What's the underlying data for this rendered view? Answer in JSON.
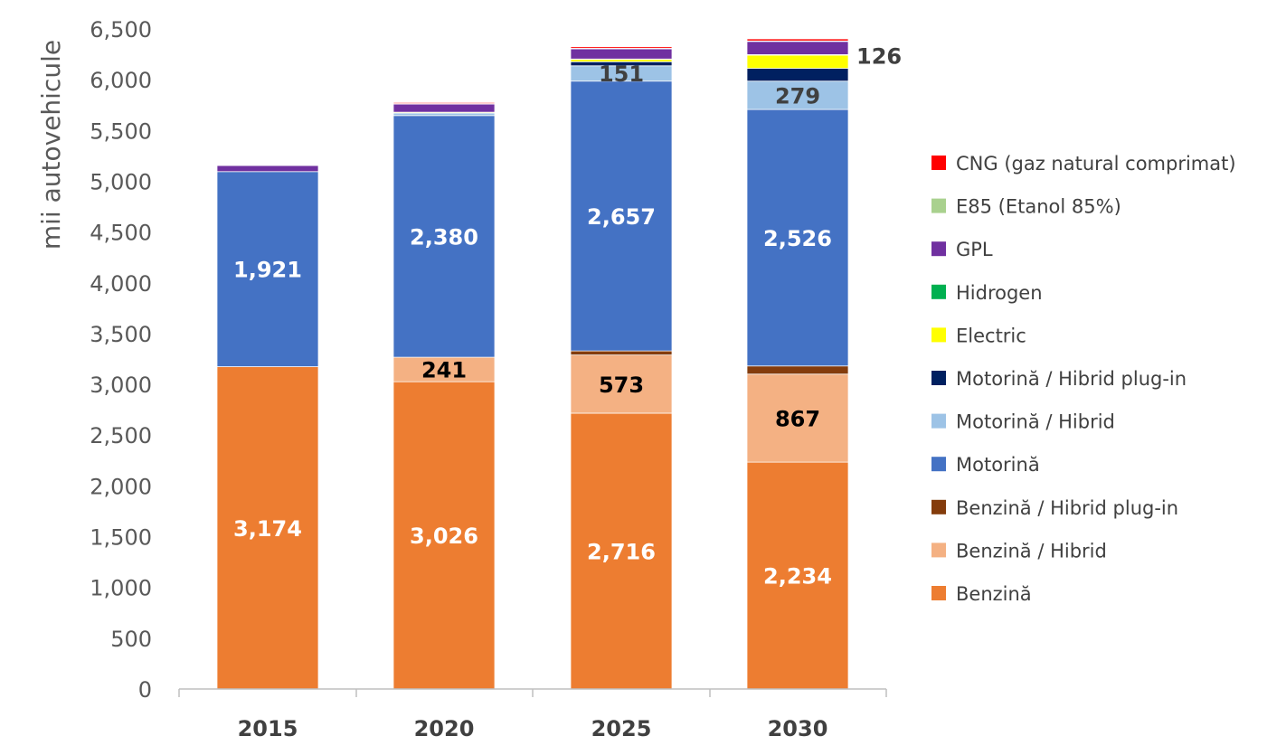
{
  "chart_data": {
    "type": "bar",
    "stacked": true,
    "categories": [
      "2015",
      "2020",
      "2025",
      "2030"
    ],
    "ylabel": "mii autovehicule",
    "ylim": [
      0,
      6500
    ],
    "yticks": [
      0,
      500,
      1000,
      1500,
      2000,
      2500,
      3000,
      3500,
      4000,
      4500,
      5000,
      5500,
      6000,
      6500
    ],
    "ytick_labels": [
      "0",
      "500",
      "1,000",
      "1,500",
      "2,000",
      "2,500",
      "3,000",
      "3,500",
      "4,000",
      "4,500",
      "5,000",
      "5,500",
      "6,000",
      "6,500"
    ],
    "grid": false,
    "legend_position": "right",
    "series": [
      {
        "name": "Benzină",
        "color": "#ED7D31",
        "values": [
          3174,
          3026,
          2716,
          2234
        ],
        "labels": [
          "3,174",
          "3,026",
          "2,716",
          "2,234"
        ],
        "label_color": "#FFFFFF"
      },
      {
        "name": "Benzină / Hibrid",
        "color": "#F4B183",
        "values": [
          0,
          241,
          573,
          867
        ],
        "labels": [
          "",
          "241",
          "573",
          "867"
        ],
        "label_color": "#000000"
      },
      {
        "name": "Benzină / Hibrid plug-in",
        "color": "#843C0C",
        "values": [
          0,
          0,
          40,
          80
        ],
        "labels": [
          "",
          "",
          "",
          ""
        ]
      },
      {
        "name": "Motorină",
        "color": "#4472C4",
        "values": [
          1921,
          2380,
          2657,
          2526
        ],
        "labels": [
          "1,921",
          "2,380",
          "2,657",
          "2,526"
        ],
        "label_color": "#FFFFFF"
      },
      {
        "name": "Motorină / Hibrid",
        "color": "#9DC3E6",
        "values": [
          0,
          25,
          151,
          279
        ],
        "labels": [
          "",
          "",
          "151",
          "279"
        ],
        "label_color": "#404040"
      },
      {
        "name": "Motorină / Hibrid plug-in",
        "color": "#002060",
        "values": [
          0,
          0,
          40,
          126
        ],
        "labels": [
          "",
          "",
          "",
          "126"
        ],
        "label_color": "#404040",
        "label_outside": true
      },
      {
        "name": "Electric",
        "color": "#FFFF00",
        "values": [
          0,
          8,
          25,
          130
        ],
        "labels": [
          "",
          "",
          "",
          ""
        ]
      },
      {
        "name": "Hidrogen",
        "color": "#00B050",
        "values": [
          0,
          0,
          2,
          5
        ],
        "labels": [
          "",
          "",
          "",
          ""
        ]
      },
      {
        "name": "GPL",
        "color": "#7030A0",
        "values": [
          60,
          80,
          100,
          130
        ],
        "labels": [
          "",
          "",
          "",
          ""
        ]
      },
      {
        "name": "E85 (Etanol 85%)",
        "color": "#A9D18E",
        "values": [
          5,
          5,
          5,
          5
        ],
        "labels": [
          "",
          "",
          "",
          ""
        ]
      },
      {
        "name": "CNG (gaz natural comprimat)",
        "color": "#FF0000",
        "values": [
          3,
          10,
          15,
          20
        ],
        "labels": [
          "",
          "",
          "",
          ""
        ]
      }
    ],
    "legend_order": [
      "CNG (gaz natural comprimat)",
      "E85 (Etanol 85%)",
      "GPL",
      "Hidrogen",
      "Electric",
      "Motorină / Hibrid plug-in",
      "Motorină / Hibrid",
      "Motorină",
      "Benzină / Hibrid plug-in",
      "Benzină / Hibrid",
      "Benzină"
    ]
  }
}
